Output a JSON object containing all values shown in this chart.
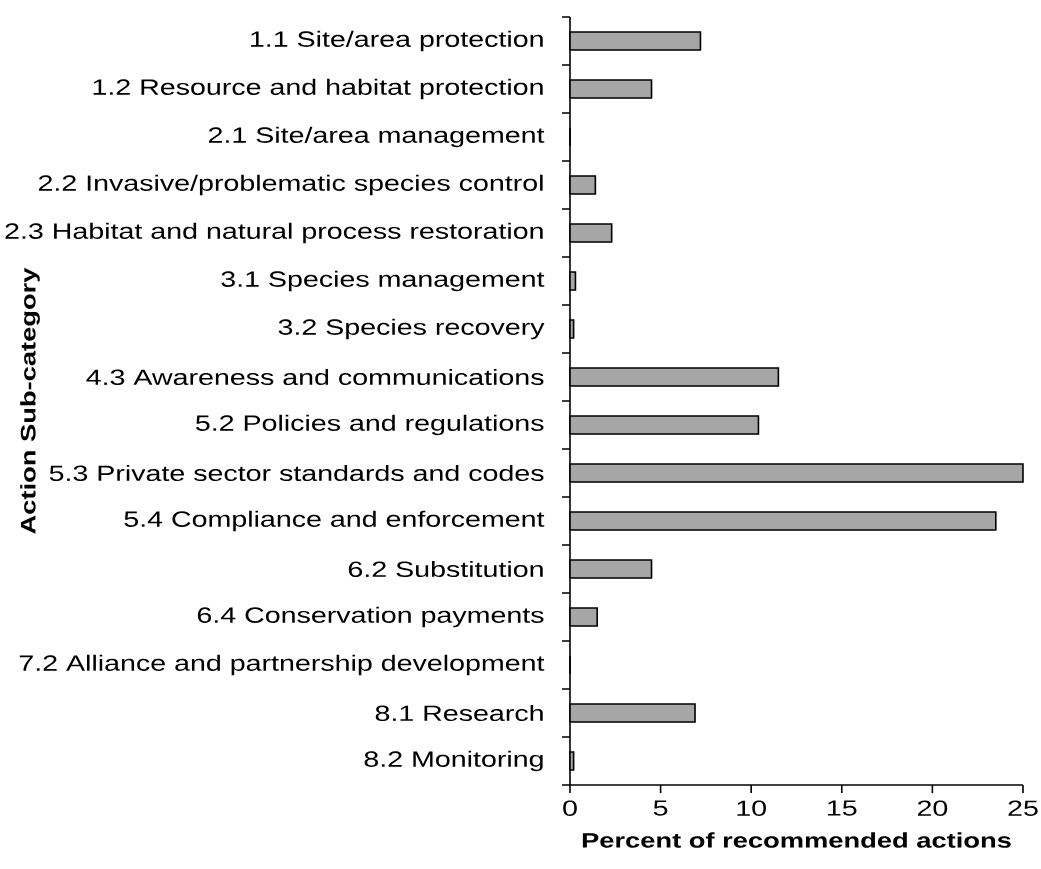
{
  "chart_data": {
    "type": "bar",
    "orientation": "horizontal",
    "xlabel": "Percent of recommended actions",
    "ylabel": "Action Sub-category",
    "categories": [
      "1.1 Site/area protection",
      "1.2 Resource and habitat protection",
      "2.1 Site/area management",
      "2.2 Invasive/problematic species control",
      "2.3 Habitat and natural process restoration",
      "3.1 Species management",
      "3.2 Species recovery",
      "4.3 Awareness and communications",
      "5.2 Policies and regulations",
      "5.3 Private sector standards and codes",
      "5.4 Compliance and enforcement",
      "6.2 Substitution",
      "6.4 Conservation payments",
      "7.2 Alliance and partnership development",
      "8.1 Research",
      "8.2 Monitoring"
    ],
    "values": [
      7.2,
      4.5,
      0,
      1.4,
      2.3,
      0.3,
      0.2,
      11.5,
      10.4,
      25,
      23.5,
      4.5,
      1.5,
      0,
      6.9,
      0.2
    ],
    "color": "#a6a6a6",
    "xlim": [
      0,
      25
    ],
    "xticks": [
      0,
      5,
      10,
      15,
      20,
      25
    ],
    "grid": false
  }
}
